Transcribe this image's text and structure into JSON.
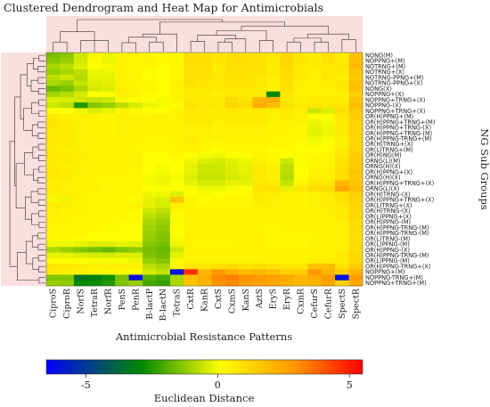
{
  "chart_data": {
    "type": "heatmap",
    "title": "Clustered Dendrogram and Heat Map for Antimicrobials",
    "xlabel": "Antimicrobial Resistance Patterns",
    "ylabel": "NG Sub Groups",
    "columns": [
      "CiproS",
      "CiproR",
      "NorfS",
      "TetraR",
      "NorfR",
      "PenS",
      "PenR",
      "B-lactP",
      "B-lactN",
      "TetraS",
      "CxtR",
      "KanR",
      "CxtS",
      "CxmS",
      "KanS",
      "AztS",
      "EryS",
      "EryR",
      "CxmR",
      "CefurS",
      "CefurR",
      "SpectS",
      "SpectR"
    ],
    "rows": [
      "NONG(M)",
      "NOPPNG+(M)",
      "NOTRNG+(M)",
      "NOTRNG+(X)",
      "NOTRNG-PPNG+(M)",
      "NOTRNG-PPNG+(X)",
      "NONG(X)",
      "NOPPNG+(X)",
      "NOPPNG+TRNG+(X)",
      "NOPPNG-(X)",
      "NOPPNG+TRNG+(X)",
      "OR(H)PPNG+(M)",
      "OR(H)PPNG+TRNG+(M)",
      "OR(H)PPNG+TRNG-(X)",
      "OR(H)PPNG+TRNG-(M)",
      "OR(H)PPNG-TRNG+(M)",
      "OR(H)TRNG+(X)",
      "OR(L)TRNG+(M)",
      "OR(H)NG(M)",
      "ORNG(L)(M)",
      "ORNG(H)(X)",
      "OR(H)PPNG+(X)",
      "ORNG(H)(X)",
      "OR(H)PPNG+TRNG+(X)",
      "ORNG(L)(X)",
      "OR(H)TRNG-(X)",
      "OR(H)PPNG+TRNG+(X)",
      "OR(L)TRNG+(X)",
      "OR(H)TRNG-(X)",
      "OR(L)PPNG+(X)",
      "OR(H)PPNG-(M)",
      "OR(H)PPNG-TRNG-(M)",
      "OR(H)PPNG-TRNG-(M)",
      "OR(L)TRNG-(M)",
      "OR(L)PPNG-(M)",
      "OR(H)PPNG-(X)",
      "OR(H)PPNG-TRNG-(M)",
      "OR(L)PPNG-(M)",
      "OR(H)PPNG-TRNG+(X)",
      "NOPPNG+(M)",
      "NOPPNG-TRNG+(M)",
      "NOPPNG+TRNG+(M)"
    ],
    "colorbar": {
      "label": "Euclidean Distance",
      "min": -6.5,
      "max": 5.5,
      "ticks": [
        -5,
        0,
        5
      ],
      "colors": [
        "#0000ff",
        "#008800",
        "#ffff00",
        "#ff0000"
      ]
    },
    "values": [
      [
        -1.6,
        -1.4,
        -0.6,
        0.2,
        -0.2,
        0.3,
        0.3,
        0.2,
        0.1,
        0.2,
        0.8,
        0.8,
        0.6,
        0.8,
        0.8,
        0.8,
        0.6,
        1.0,
        0.6,
        0.5,
        0.7,
        0.5,
        1.5
      ],
      [
        -1.4,
        -1.2,
        -0.5,
        0.1,
        -0.2,
        0.3,
        0.2,
        0.3,
        0.2,
        0.2,
        0.8,
        0.8,
        0.6,
        0.8,
        0.8,
        0.7,
        0.5,
        0.9,
        0.6,
        0.5,
        0.7,
        0.5,
        1.6
      ],
      [
        -1.0,
        -0.8,
        -0.4,
        0.0,
        -0.1,
        0.3,
        0.2,
        0.2,
        0.1,
        0.2,
        0.8,
        0.8,
        0.5,
        0.8,
        0.7,
        0.7,
        0.5,
        0.9,
        0.5,
        0.5,
        0.6,
        0.6,
        1.7
      ],
      [
        -1.2,
        -1.0,
        -0.8,
        -0.2,
        -0.2,
        0.3,
        0.3,
        0.1,
        0.0,
        0.2,
        0.7,
        0.7,
        0.5,
        0.7,
        0.7,
        0.7,
        0.5,
        0.8,
        0.5,
        0.4,
        0.6,
        0.5,
        1.4
      ],
      [
        -0.8,
        -0.6,
        -0.9,
        -0.3,
        -0.3,
        0.3,
        0.2,
        0.1,
        0.0,
        0.2,
        0.8,
        0.7,
        0.6,
        0.7,
        0.7,
        0.6,
        0.4,
        0.8,
        0.5,
        0.4,
        0.6,
        0.4,
        1.3
      ],
      [
        -1.0,
        -1.2,
        -0.7,
        -0.4,
        -0.3,
        0.4,
        0.3,
        0.2,
        0.1,
        0.3,
        0.7,
        0.6,
        0.6,
        0.6,
        0.6,
        0.6,
        0.4,
        0.8,
        0.4,
        0.4,
        0.5,
        0.6,
        1.5
      ],
      [
        -1.8,
        -1.6,
        -1.0,
        -0.5,
        -0.4,
        0.4,
        0.3,
        0.2,
        0.1,
        0.2,
        0.6,
        0.6,
        0.5,
        0.6,
        0.6,
        0.5,
        0.3,
        0.7,
        0.4,
        0.3,
        0.4,
        0.5,
        1.6
      ],
      [
        -1.1,
        -0.9,
        -0.5,
        0.0,
        0.1,
        0.4,
        0.3,
        0.1,
        0.0,
        0.3,
        0.5,
        0.5,
        0.4,
        0.6,
        0.5,
        0.5,
        -3.0,
        0.6,
        0.3,
        0.4,
        0.4,
        0.4,
        1.2
      ],
      [
        -0.4,
        -0.5,
        -0.6,
        -0.7,
        -0.6,
        0.2,
        0.1,
        0.0,
        -0.1,
        0.2,
        0.6,
        0.5,
        0.5,
        0.9,
        0.7,
        1.8,
        2.0,
        0.6,
        0.4,
        0.5,
        0.5,
        0.5,
        1.4
      ],
      [
        -0.6,
        -0.8,
        -2.6,
        -1.4,
        -1.2,
        -0.8,
        -0.5,
        -0.2,
        -0.1,
        0.1,
        0.7,
        0.6,
        0.6,
        1.0,
        0.8,
        2.0,
        1.6,
        0.7,
        0.5,
        0.6,
        0.6,
        0.6,
        1.6
      ],
      [
        0.1,
        0.0,
        -0.2,
        -0.4,
        -0.3,
        0.3,
        0.2,
        0.1,
        0.0,
        0.3,
        0.6,
        0.5,
        0.5,
        0.6,
        0.5,
        0.5,
        0.4,
        0.5,
        0.4,
        -0.6,
        -0.4,
        0.8,
        1.3
      ],
      [
        0.5,
        0.4,
        0.3,
        0.3,
        0.2,
        0.4,
        0.4,
        0.3,
        0.3,
        0.3,
        0.6,
        0.5,
        0.5,
        0.5,
        0.5,
        0.5,
        0.4,
        0.5,
        0.4,
        0.0,
        0.1,
        0.6,
        1.2
      ],
      [
        0.6,
        0.5,
        0.4,
        0.3,
        0.3,
        0.4,
        0.4,
        0.3,
        0.3,
        0.3,
        0.5,
        0.5,
        0.4,
        0.5,
        0.5,
        0.5,
        0.4,
        0.4,
        0.3,
        -0.2,
        -0.1,
        0.5,
        1.1
      ],
      [
        0.6,
        0.5,
        0.4,
        0.4,
        0.3,
        0.4,
        0.4,
        0.3,
        0.3,
        0.3,
        0.4,
        0.4,
        0.3,
        0.4,
        0.4,
        0.4,
        0.3,
        0.3,
        0.2,
        -0.3,
        -0.2,
        0.5,
        1.0
      ],
      [
        0.5,
        0.5,
        0.4,
        0.3,
        0.3,
        0.4,
        0.3,
        0.3,
        0.3,
        0.3,
        0.4,
        0.4,
        0.3,
        0.4,
        0.4,
        0.4,
        0.3,
        0.3,
        0.2,
        -0.3,
        -0.2,
        0.5,
        1.1
      ],
      [
        0.6,
        0.5,
        0.4,
        0.4,
        0.3,
        0.4,
        0.4,
        0.3,
        0.3,
        0.3,
        0.5,
        0.4,
        0.4,
        0.4,
        0.4,
        0.4,
        0.3,
        0.3,
        0.2,
        -0.2,
        -0.1,
        0.4,
        1.0
      ],
      [
        0.5,
        0.5,
        0.4,
        0.4,
        0.3,
        0.3,
        0.3,
        0.2,
        0.2,
        0.3,
        0.4,
        0.3,
        0.2,
        0.3,
        0.3,
        0.3,
        0.2,
        0.2,
        0.1,
        -0.1,
        0.0,
        0.4,
        1.0
      ],
      [
        0.5,
        0.4,
        0.4,
        0.3,
        0.3,
        0.3,
        0.3,
        0.2,
        0.2,
        0.3,
        0.3,
        0.2,
        0.1,
        0.2,
        0.2,
        0.2,
        0.1,
        0.1,
        0.1,
        0.0,
        0.1,
        0.5,
        1.1
      ],
      [
        0.6,
        0.5,
        0.5,
        0.4,
        0.4,
        0.3,
        0.3,
        0.1,
        0.1,
        0.2,
        0.1,
        -0.1,
        -0.2,
        0.0,
        0.1,
        0.3,
        0.2,
        0.1,
        0.1,
        0.1,
        0.2,
        0.6,
        1.2
      ],
      [
        0.5,
        0.5,
        0.4,
        0.4,
        0.3,
        0.3,
        0.3,
        0.0,
        0.0,
        0.1,
        -0.2,
        -0.4,
        -0.5,
        -0.3,
        -0.2,
        0.4,
        0.2,
        -0.6,
        0.1,
        0.2,
        0.3,
        0.7,
        1.3
      ],
      [
        0.5,
        0.4,
        0.4,
        0.4,
        0.3,
        0.3,
        0.3,
        0.0,
        -0.1,
        0.0,
        -0.3,
        -0.6,
        -0.6,
        -0.4,
        -0.3,
        0.5,
        0.3,
        -0.8,
        0.0,
        0.2,
        0.3,
        0.7,
        1.2
      ],
      [
        0.6,
        0.5,
        0.4,
        0.4,
        0.3,
        0.3,
        0.3,
        0.0,
        -0.1,
        0.0,
        -0.3,
        -0.6,
        -0.6,
        -0.4,
        -0.3,
        0.6,
        0.4,
        -0.8,
        0.0,
        0.3,
        0.4,
        0.8,
        1.4
      ],
      [
        0.5,
        0.5,
        0.4,
        0.3,
        0.3,
        0.2,
        0.2,
        -0.1,
        -0.2,
        -0.1,
        -0.4,
        -0.7,
        -0.7,
        -0.5,
        -0.4,
        0.5,
        0.4,
        -0.9,
        0.1,
        0.4,
        0.4,
        0.8,
        1.3
      ],
      [
        0.4,
        0.4,
        0.3,
        0.3,
        0.2,
        0.2,
        0.2,
        -0.1,
        -0.2,
        0.0,
        -0.3,
        -0.5,
        -0.5,
        -0.3,
        -0.3,
        0.6,
        0.5,
        -0.7,
        0.2,
        0.6,
        0.6,
        1.8,
        1.4
      ],
      [
        0.5,
        0.4,
        0.4,
        0.4,
        0.3,
        0.3,
        0.3,
        0.0,
        0.0,
        0.1,
        -0.1,
        -0.2,
        -0.2,
        -0.1,
        0.0,
        0.7,
        0.7,
        -0.3,
        0.6,
        0.8,
        0.9,
        2.2,
        1.6
      ],
      [
        0.4,
        0.4,
        0.3,
        0.3,
        0.2,
        0.2,
        0.2,
        -0.2,
        -0.2,
        -0.4,
        0.0,
        -0.1,
        0.0,
        0.1,
        0.1,
        0.5,
        0.5,
        0.3,
        0.3,
        0.4,
        0.5,
        0.8,
        1.2
      ],
      [
        -0.1,
        -0.2,
        0.3,
        0.2,
        0.2,
        0.2,
        0.1,
        -0.3,
        -0.4,
        1.5,
        0.2,
        0.1,
        0.2,
        0.2,
        0.2,
        0.5,
        0.4,
        0.3,
        0.3,
        0.4,
        0.4,
        0.7,
        1.1
      ],
      [
        0.5,
        0.4,
        0.4,
        0.3,
        0.3,
        0.3,
        0.3,
        -0.3,
        -0.5,
        0.4,
        0.3,
        0.2,
        0.2,
        0.3,
        0.3,
        0.4,
        0.4,
        0.4,
        0.3,
        0.4,
        0.5,
        0.6,
        1.0
      ],
      [
        0.4,
        0.3,
        0.3,
        0.3,
        0.2,
        0.2,
        0.2,
        -0.6,
        -0.8,
        0.2,
        0.3,
        0.3,
        0.3,
        0.3,
        0.3,
        0.4,
        0.3,
        0.3,
        0.3,
        0.3,
        0.4,
        0.5,
        0.9
      ],
      [
        0.4,
        0.3,
        0.3,
        0.2,
        0.2,
        0.2,
        0.1,
        -0.8,
        -1.0,
        0.1,
        0.3,
        0.3,
        0.3,
        0.3,
        0.3,
        0.3,
        0.3,
        0.3,
        0.3,
        0.3,
        0.4,
        0.5,
        0.9
      ],
      [
        0.3,
        0.3,
        0.2,
        0.2,
        0.2,
        0.1,
        0.1,
        -1.0,
        -1.2,
        0.1,
        0.3,
        0.3,
        0.3,
        0.3,
        0.3,
        0.3,
        0.3,
        0.3,
        0.3,
        0.3,
        0.3,
        0.4,
        0.8
      ],
      [
        0.3,
        0.3,
        0.2,
        0.2,
        0.1,
        0.1,
        0.1,
        -1.1,
        -1.3,
        0.0,
        0.3,
        0.3,
        0.3,
        0.3,
        0.3,
        0.3,
        0.3,
        0.3,
        0.3,
        0.3,
        0.3,
        0.4,
        0.8
      ],
      [
        0.2,
        0.2,
        0.2,
        0.1,
        0.1,
        0.1,
        0.0,
        -1.2,
        -1.4,
        0.0,
        0.3,
        0.3,
        0.3,
        0.3,
        0.3,
        0.3,
        0.2,
        0.3,
        0.3,
        0.3,
        0.3,
        0.4,
        0.8
      ],
      [
        0.2,
        0.2,
        0.1,
        0.1,
        0.1,
        0.0,
        0.0,
        -1.3,
        -1.5,
        -0.1,
        0.3,
        0.3,
        0.3,
        0.3,
        0.3,
        0.3,
        0.2,
        0.2,
        0.2,
        0.3,
        0.3,
        0.4,
        0.8
      ],
      [
        -0.2,
        -0.2,
        -0.3,
        -0.4,
        -0.4,
        -0.3,
        -0.4,
        -1.4,
        -1.6,
        -0.2,
        0.3,
        0.2,
        0.2,
        0.3,
        0.3,
        0.3,
        0.2,
        0.2,
        0.2,
        0.3,
        0.3,
        0.4,
        0.8
      ],
      [
        -1.0,
        -1.2,
        -1.4,
        -1.6,
        -1.8,
        -1.5,
        -1.3,
        -1.6,
        -1.8,
        -0.6,
        0.3,
        0.3,
        0.3,
        0.3,
        0.3,
        0.4,
        0.3,
        0.3,
        0.3,
        0.3,
        0.3,
        0.4,
        0.8
      ],
      [
        -0.3,
        -0.3,
        -0.4,
        -0.5,
        -0.5,
        -0.4,
        -0.4,
        -1.5,
        -1.7,
        -0.3,
        0.3,
        0.3,
        0.3,
        0.3,
        0.3,
        0.3,
        0.3,
        0.3,
        0.3,
        0.3,
        0.3,
        0.5,
        0.9
      ],
      [
        0.1,
        0.1,
        0.0,
        -0.1,
        -0.1,
        -0.1,
        -0.2,
        -1.2,
        -1.4,
        -0.1,
        0.4,
        0.4,
        0.4,
        0.4,
        0.4,
        0.4,
        0.3,
        0.3,
        0.3,
        0.4,
        0.4,
        0.5,
        0.9
      ],
      [
        0.6,
        0.6,
        0.5,
        0.4,
        0.4,
        0.4,
        0.3,
        -0.8,
        -1.0,
        0.2,
        0.6,
        0.6,
        0.7,
        0.9,
        0.7,
        0.8,
        0.7,
        0.6,
        0.6,
        1.5,
        1.6,
        0.7,
        1.3
      ],
      [
        0.5,
        0.4,
        0.3,
        0.2,
        0.1,
        0.2,
        0.0,
        -0.5,
        -0.7,
        -6.0,
        4.5,
        1.8,
        2.5,
        2.0,
        1.6,
        1.8,
        1.5,
        1.2,
        1.2,
        2.5,
        1.8,
        1.2,
        1.8
      ],
      [
        -1.5,
        -1.5,
        -3.5,
        -3.2,
        -2.8,
        -1.6,
        -6.0,
        -2.0,
        -2.2,
        -1.0,
        1.6,
        2.0,
        2.8,
        3.0,
        2.6,
        2.5,
        2.3,
        2.1,
        1.8,
        2.0,
        2.4,
        -6.0,
        2.4
      ],
      [
        -1.2,
        -1.3,
        -3.0,
        -2.9,
        -2.6,
        -1.5,
        -1.2,
        -2.2,
        -2.4,
        -1.0,
        1.4,
        1.8,
        2.6,
        2.8,
        2.4,
        2.3,
        2.1,
        1.9,
        1.7,
        1.8,
        2.2,
        1.2,
        2.1
      ]
    ]
  }
}
